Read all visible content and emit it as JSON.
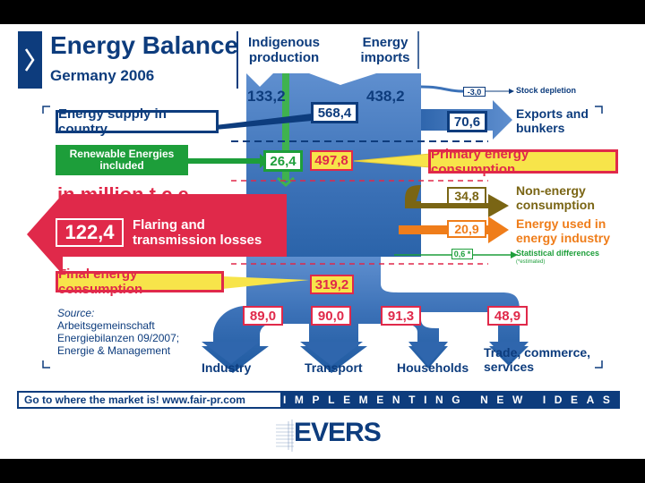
{
  "title": "Energy Balance",
  "subtitle": "Germany 2006",
  "headers": {
    "indigenous": "Indigenous production",
    "imports": "Energy imports"
  },
  "values": {
    "indigenous": "133,2",
    "imports": "438,2",
    "supply": "568,4",
    "stock_depletion": "-3,0",
    "exports": "70,6",
    "renewables": "26,4",
    "primary": "497,8",
    "flaring": "122,4",
    "non_energy": "34,8",
    "energy_industry": "20,9",
    "statistical": "0,6 *",
    "final": "319,2",
    "industry": "89,0",
    "transport": "90,0",
    "households": "91,3",
    "trade": "48,9"
  },
  "labels": {
    "supply": "Energy supply in country",
    "renewables": "Renewable Energies included",
    "unit": "in million t.c.e.",
    "flaring": "Flaring and transmission losses",
    "stock_depletion": "Stock depletion",
    "exports": "Exports and bunkers",
    "primary": "Primary energy consumption",
    "non_energy": "Non-energy consumption",
    "energy_industry": "Energy used in energy industry",
    "statistical": "Statistical differences",
    "statistical_note": "(*estimated)",
    "final": "Final energy consumption",
    "industry": "Industry",
    "transport": "Transport",
    "households": "Households",
    "trade": "Trade, commerce, services"
  },
  "source": {
    "heading": "Source:",
    "line1": "Arbeitsgemeinschaft",
    "line2": "Energiebilanzen 09/2007;",
    "line3": "Energie & Management"
  },
  "footer": {
    "left": "Go to where the market is!   www.fair-pr.com",
    "right": "IMPLEMENTING NEW IDEAS"
  },
  "logo": "EVERS",
  "colors": {
    "navy": "#0d3c7d",
    "flow_blue": "#3c72b8",
    "red": "#e0294a",
    "yellow": "#f7e44a",
    "green": "#1d9e3a",
    "olive": "#7a6514",
    "orange": "#ef7d1a"
  }
}
